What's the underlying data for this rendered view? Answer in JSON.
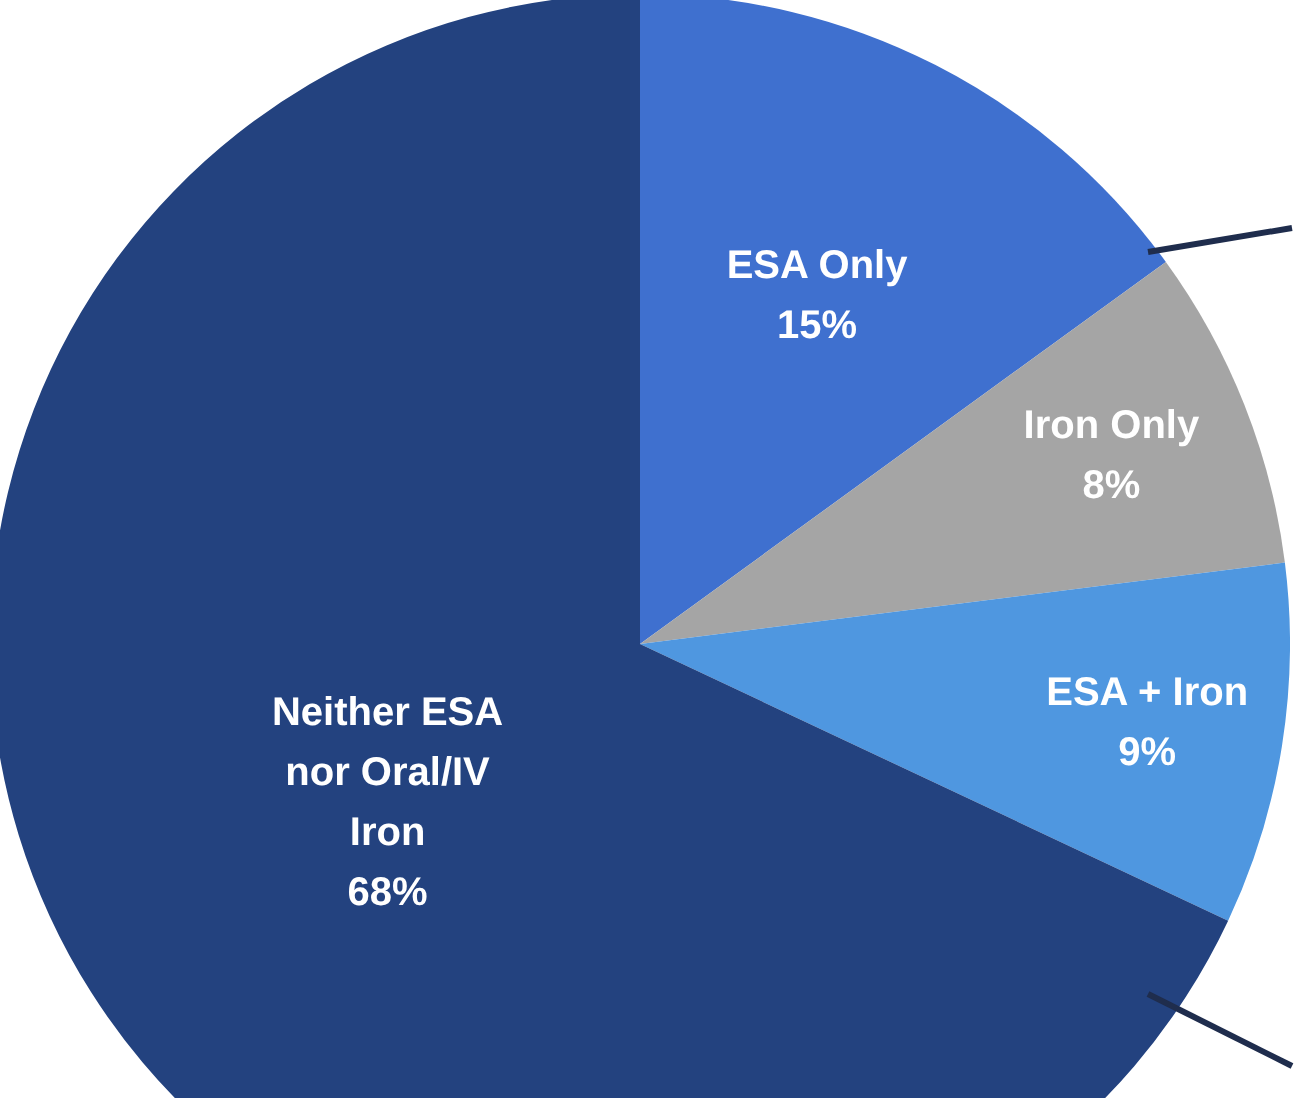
{
  "chart_data": {
    "type": "pie",
    "categories": [
      "ESA Only",
      "Iron Only",
      "ESA + Iron",
      "Neither ESA nor Oral/IV Iron"
    ],
    "values": [
      15,
      8,
      9,
      68
    ],
    "value_labels": [
      "15%",
      "8%",
      "9%",
      "68%"
    ],
    "colors": [
      "#3f70cf",
      "#a5a5a5",
      "#4f97e0",
      "#23427f"
    ]
  }
}
